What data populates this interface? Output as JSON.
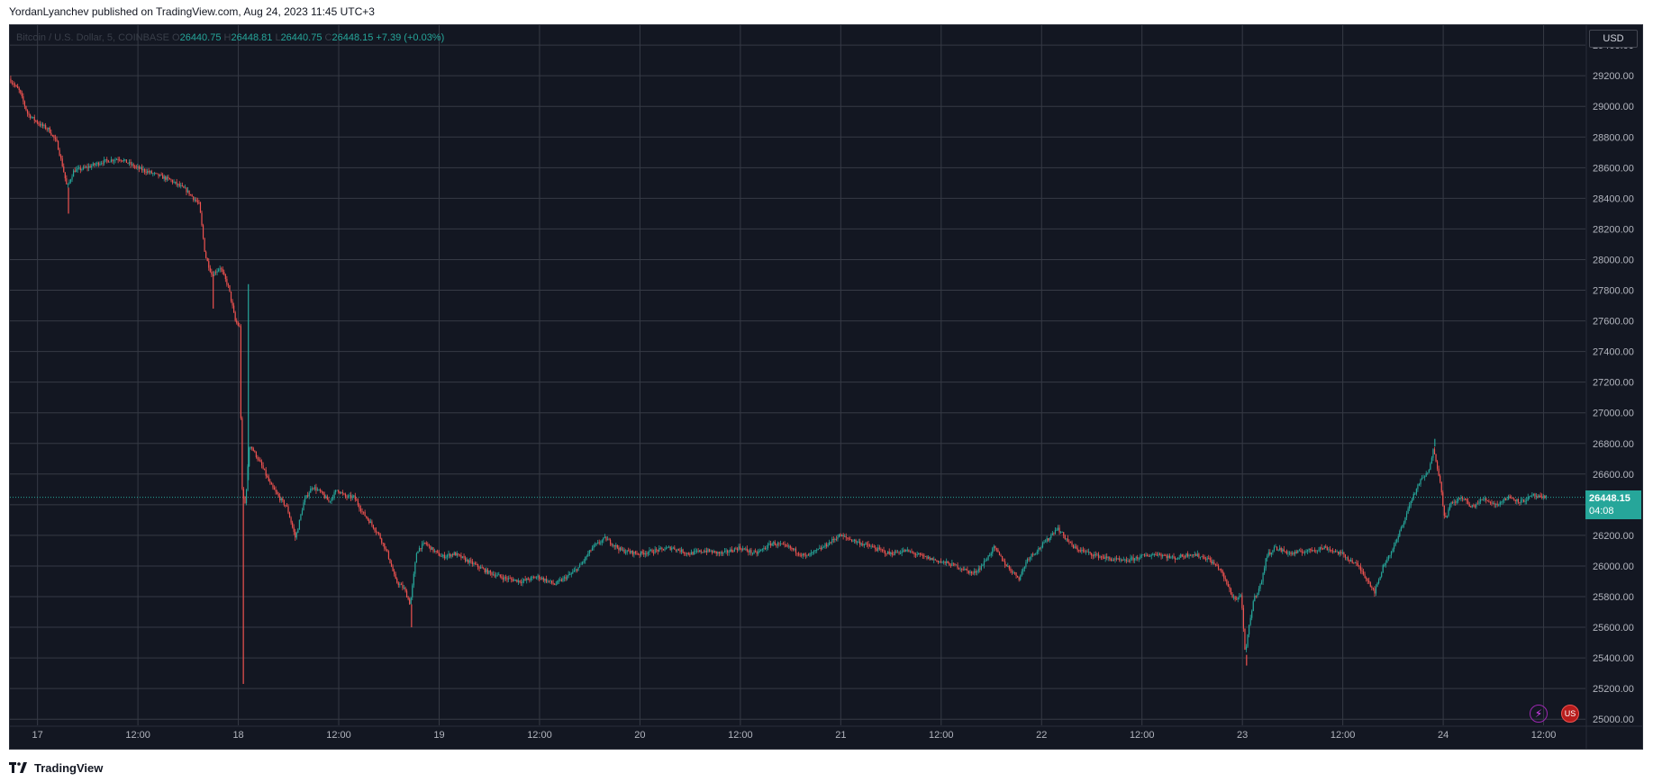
{
  "header": {
    "published_text": "YordanLyanchev published on TradingView.com, Aug 24, 2023 11:45 UTC+3"
  },
  "footer": {
    "logo_glyph": "TV",
    "brand": "TradingView"
  },
  "legend": {
    "symbol": "Bitcoin / U.S. Dollar, 5, COINBASE",
    "o_label": "O",
    "o_value": "26440.75",
    "h_label": "H",
    "h_value": "26448.81",
    "l_label": "L",
    "l_value": "26440.75",
    "c_label": "C",
    "c_value": "26448.15",
    "change": "+7.39 (+0.03%)"
  },
  "currency_button": "USD",
  "last_price": {
    "value": "26448.15",
    "countdown": "04:08"
  },
  "colors": {
    "background": "#131722",
    "grid": "#363a45",
    "up": "#26a69a",
    "down": "#ef5350",
    "axis_text": "#b2b5be"
  },
  "icons": [
    "lightning-icon",
    "us-flag-icon"
  ],
  "chart_data": {
    "type": "candlestick",
    "symbol": "Bitcoin / U.S. Dollar",
    "interval": "5",
    "exchange": "COINBASE",
    "y_ticks": [
      25000,
      25200,
      25400,
      25600,
      25800,
      26000,
      26200,
      26400,
      26600,
      26800,
      27000,
      27200,
      27400,
      27600,
      27800,
      28000,
      28200,
      28400,
      28600,
      28800,
      29000,
      29200,
      29400
    ],
    "y_tick_labels": [
      "25000.00",
      "25200.00",
      "25400.00",
      "25600.00",
      "25800.00",
      "26000.00",
      "26200.00",
      "26400.00",
      "26600.00",
      "26800.00",
      "27000.00",
      "27200.00",
      "27400.00",
      "27600.00",
      "27800.00",
      "28000.00",
      "28200.00",
      "28400.00",
      "28600.00",
      "28800.00",
      "29000.00",
      "29200.00",
      "29400.00"
    ],
    "ylim": [
      24960,
      29530
    ],
    "x_ticks": [
      {
        "t": 0,
        "label": "17"
      },
      {
        "t": 12,
        "label": "12:00"
      },
      {
        "t": 24,
        "label": "18"
      },
      {
        "t": 36,
        "label": "12:00"
      },
      {
        "t": 48,
        "label": "19"
      },
      {
        "t": 60,
        "label": "12:00"
      },
      {
        "t": 72,
        "label": "20"
      },
      {
        "t": 84,
        "label": "12:00"
      },
      {
        "t": 96,
        "label": "21"
      },
      {
        "t": 108,
        "label": "12:00"
      },
      {
        "t": 120,
        "label": "22"
      },
      {
        "t": 132,
        "label": "12:00"
      },
      {
        "t": 144,
        "label": "23"
      },
      {
        "t": 156,
        "label": "12:00"
      },
      {
        "t": 168,
        "label": "24"
      },
      {
        "t": 180,
        "label": "12:00"
      }
    ],
    "xlim_hours": [
      -3.3,
      185
    ],
    "price_path": [
      [
        -3.2,
        29180
      ],
      [
        -2.0,
        29100
      ],
      [
        -1.0,
        28950
      ],
      [
        0.5,
        28880
      ],
      [
        1.5,
        28850
      ],
      [
        2.5,
        28760
      ],
      [
        3.2,
        28600
      ],
      [
        3.7,
        28470
      ],
      [
        4.5,
        28580
      ],
      [
        6.0,
        28600
      ],
      [
        8.0,
        28640
      ],
      [
        10.0,
        28660
      ],
      [
        12.0,
        28600
      ],
      [
        14.0,
        28560
      ],
      [
        16.0,
        28520
      ],
      [
        18.0,
        28450
      ],
      [
        19.5,
        28360
      ],
      [
        20.2,
        28030
      ],
      [
        21.0,
        27900
      ],
      [
        22.0,
        27950
      ],
      [
        23.0,
        27820
      ],
      [
        23.8,
        27600
      ],
      [
        24.3,
        27560
      ],
      [
        24.6,
        26500
      ],
      [
        25.0,
        26400
      ],
      [
        25.5,
        26800
      ],
      [
        26.0,
        26750
      ],
      [
        27.0,
        26650
      ],
      [
        28.0,
        26530
      ],
      [
        29.0,
        26450
      ],
      [
        30.0,
        26380
      ],
      [
        31.0,
        26180
      ],
      [
        32.0,
        26420
      ],
      [
        33.0,
        26520
      ],
      [
        34.0,
        26480
      ],
      [
        35.0,
        26420
      ],
      [
        36.0,
        26500
      ],
      [
        37.0,
        26450
      ],
      [
        38.0,
        26450
      ],
      [
        39.0,
        26350
      ],
      [
        40.0,
        26280
      ],
      [
        41.0,
        26200
      ],
      [
        42.0,
        26080
      ],
      [
        43.0,
        25900
      ],
      [
        44.0,
        25850
      ],
      [
        44.7,
        25750
      ],
      [
        45.5,
        26100
      ],
      [
        46.5,
        26150
      ],
      [
        47.5,
        26100
      ],
      [
        48.5,
        26060
      ],
      [
        50.0,
        26080
      ],
      [
        52.0,
        26020
      ],
      [
        54.0,
        25960
      ],
      [
        56.0,
        25920
      ],
      [
        58.0,
        25900
      ],
      [
        60.0,
        25930
      ],
      [
        62.0,
        25880
      ],
      [
        64.0,
        25950
      ],
      [
        65.0,
        26000
      ],
      [
        66.5,
        26120
      ],
      [
        68.0,
        26180
      ],
      [
        70.0,
        26100
      ],
      [
        72.0,
        26080
      ],
      [
        74.0,
        26100
      ],
      [
        76.0,
        26120
      ],
      [
        78.0,
        26080
      ],
      [
        80.0,
        26100
      ],
      [
        82.0,
        26080
      ],
      [
        84.0,
        26120
      ],
      [
        86.0,
        26080
      ],
      [
        88.0,
        26150
      ],
      [
        90.0,
        26120
      ],
      [
        92.0,
        26060
      ],
      [
        94.0,
        26120
      ],
      [
        96.0,
        26200
      ],
      [
        98.0,
        26160
      ],
      [
        100.0,
        26120
      ],
      [
        102.0,
        26080
      ],
      [
        104.0,
        26100
      ],
      [
        106.0,
        26060
      ],
      [
        108.0,
        26030
      ],
      [
        110.0,
        26000
      ],
      [
        112.0,
        25950
      ],
      [
        113.0,
        26000
      ],
      [
        114.5,
        26120
      ],
      [
        116.0,
        26000
      ],
      [
        117.5,
        25920
      ],
      [
        118.5,
        26050
      ],
      [
        120.0,
        26120
      ],
      [
        121.0,
        26180
      ],
      [
        122.0,
        26250
      ],
      [
        124.0,
        26120
      ],
      [
        126.0,
        26080
      ],
      [
        128.0,
        26050
      ],
      [
        130.0,
        26030
      ],
      [
        132.0,
        26060
      ],
      [
        134.0,
        26080
      ],
      [
        136.0,
        26050
      ],
      [
        138.0,
        26080
      ],
      [
        140.0,
        26050
      ],
      [
        141.5,
        25980
      ],
      [
        142.5,
        25860
      ],
      [
        143.0,
        25800
      ],
      [
        143.5,
        25780
      ],
      [
        144.0,
        25820
      ],
      [
        144.5,
        25420
      ],
      [
        145.0,
        25620
      ],
      [
        145.5,
        25780
      ],
      [
        146.5,
        25900
      ],
      [
        147.0,
        26060
      ],
      [
        148.0,
        26120
      ],
      [
        150.0,
        26080
      ],
      [
        152.0,
        26100
      ],
      [
        154.0,
        26120
      ],
      [
        156.0,
        26080
      ],
      [
        158.0,
        26000
      ],
      [
        159.0,
        25920
      ],
      [
        160.0,
        25830
      ],
      [
        161.0,
        26000
      ],
      [
        162.5,
        26150
      ],
      [
        163.5,
        26300
      ],
      [
        164.5,
        26450
      ],
      [
        165.5,
        26560
      ],
      [
        166.5,
        26620
      ],
      [
        167.0,
        26780
      ],
      [
        167.7,
        26580
      ],
      [
        168.4,
        26300
      ],
      [
        169.0,
        26400
      ],
      [
        170.5,
        26450
      ],
      [
        171.5,
        26380
      ],
      [
        173.0,
        26440
      ],
      [
        174.5,
        26400
      ],
      [
        176.0,
        26450
      ],
      [
        177.5,
        26420
      ],
      [
        179.0,
        26460
      ],
      [
        180.0,
        26440
      ],
      [
        180.3,
        26448
      ]
    ],
    "spikes": [
      {
        "t": 3.7,
        "low": 28300
      },
      {
        "t": 21.0,
        "low": 27680
      },
      {
        "t": 24.6,
        "low": 25230
      },
      {
        "t": 25.2,
        "high": 27840
      },
      {
        "t": 44.7,
        "low": 25600
      },
      {
        "t": 144.5,
        "low": 25350
      },
      {
        "t": 167.0,
        "high": 26830
      }
    ],
    "last_price": 26448.15,
    "grid": true,
    "legend_position": "top-left"
  }
}
